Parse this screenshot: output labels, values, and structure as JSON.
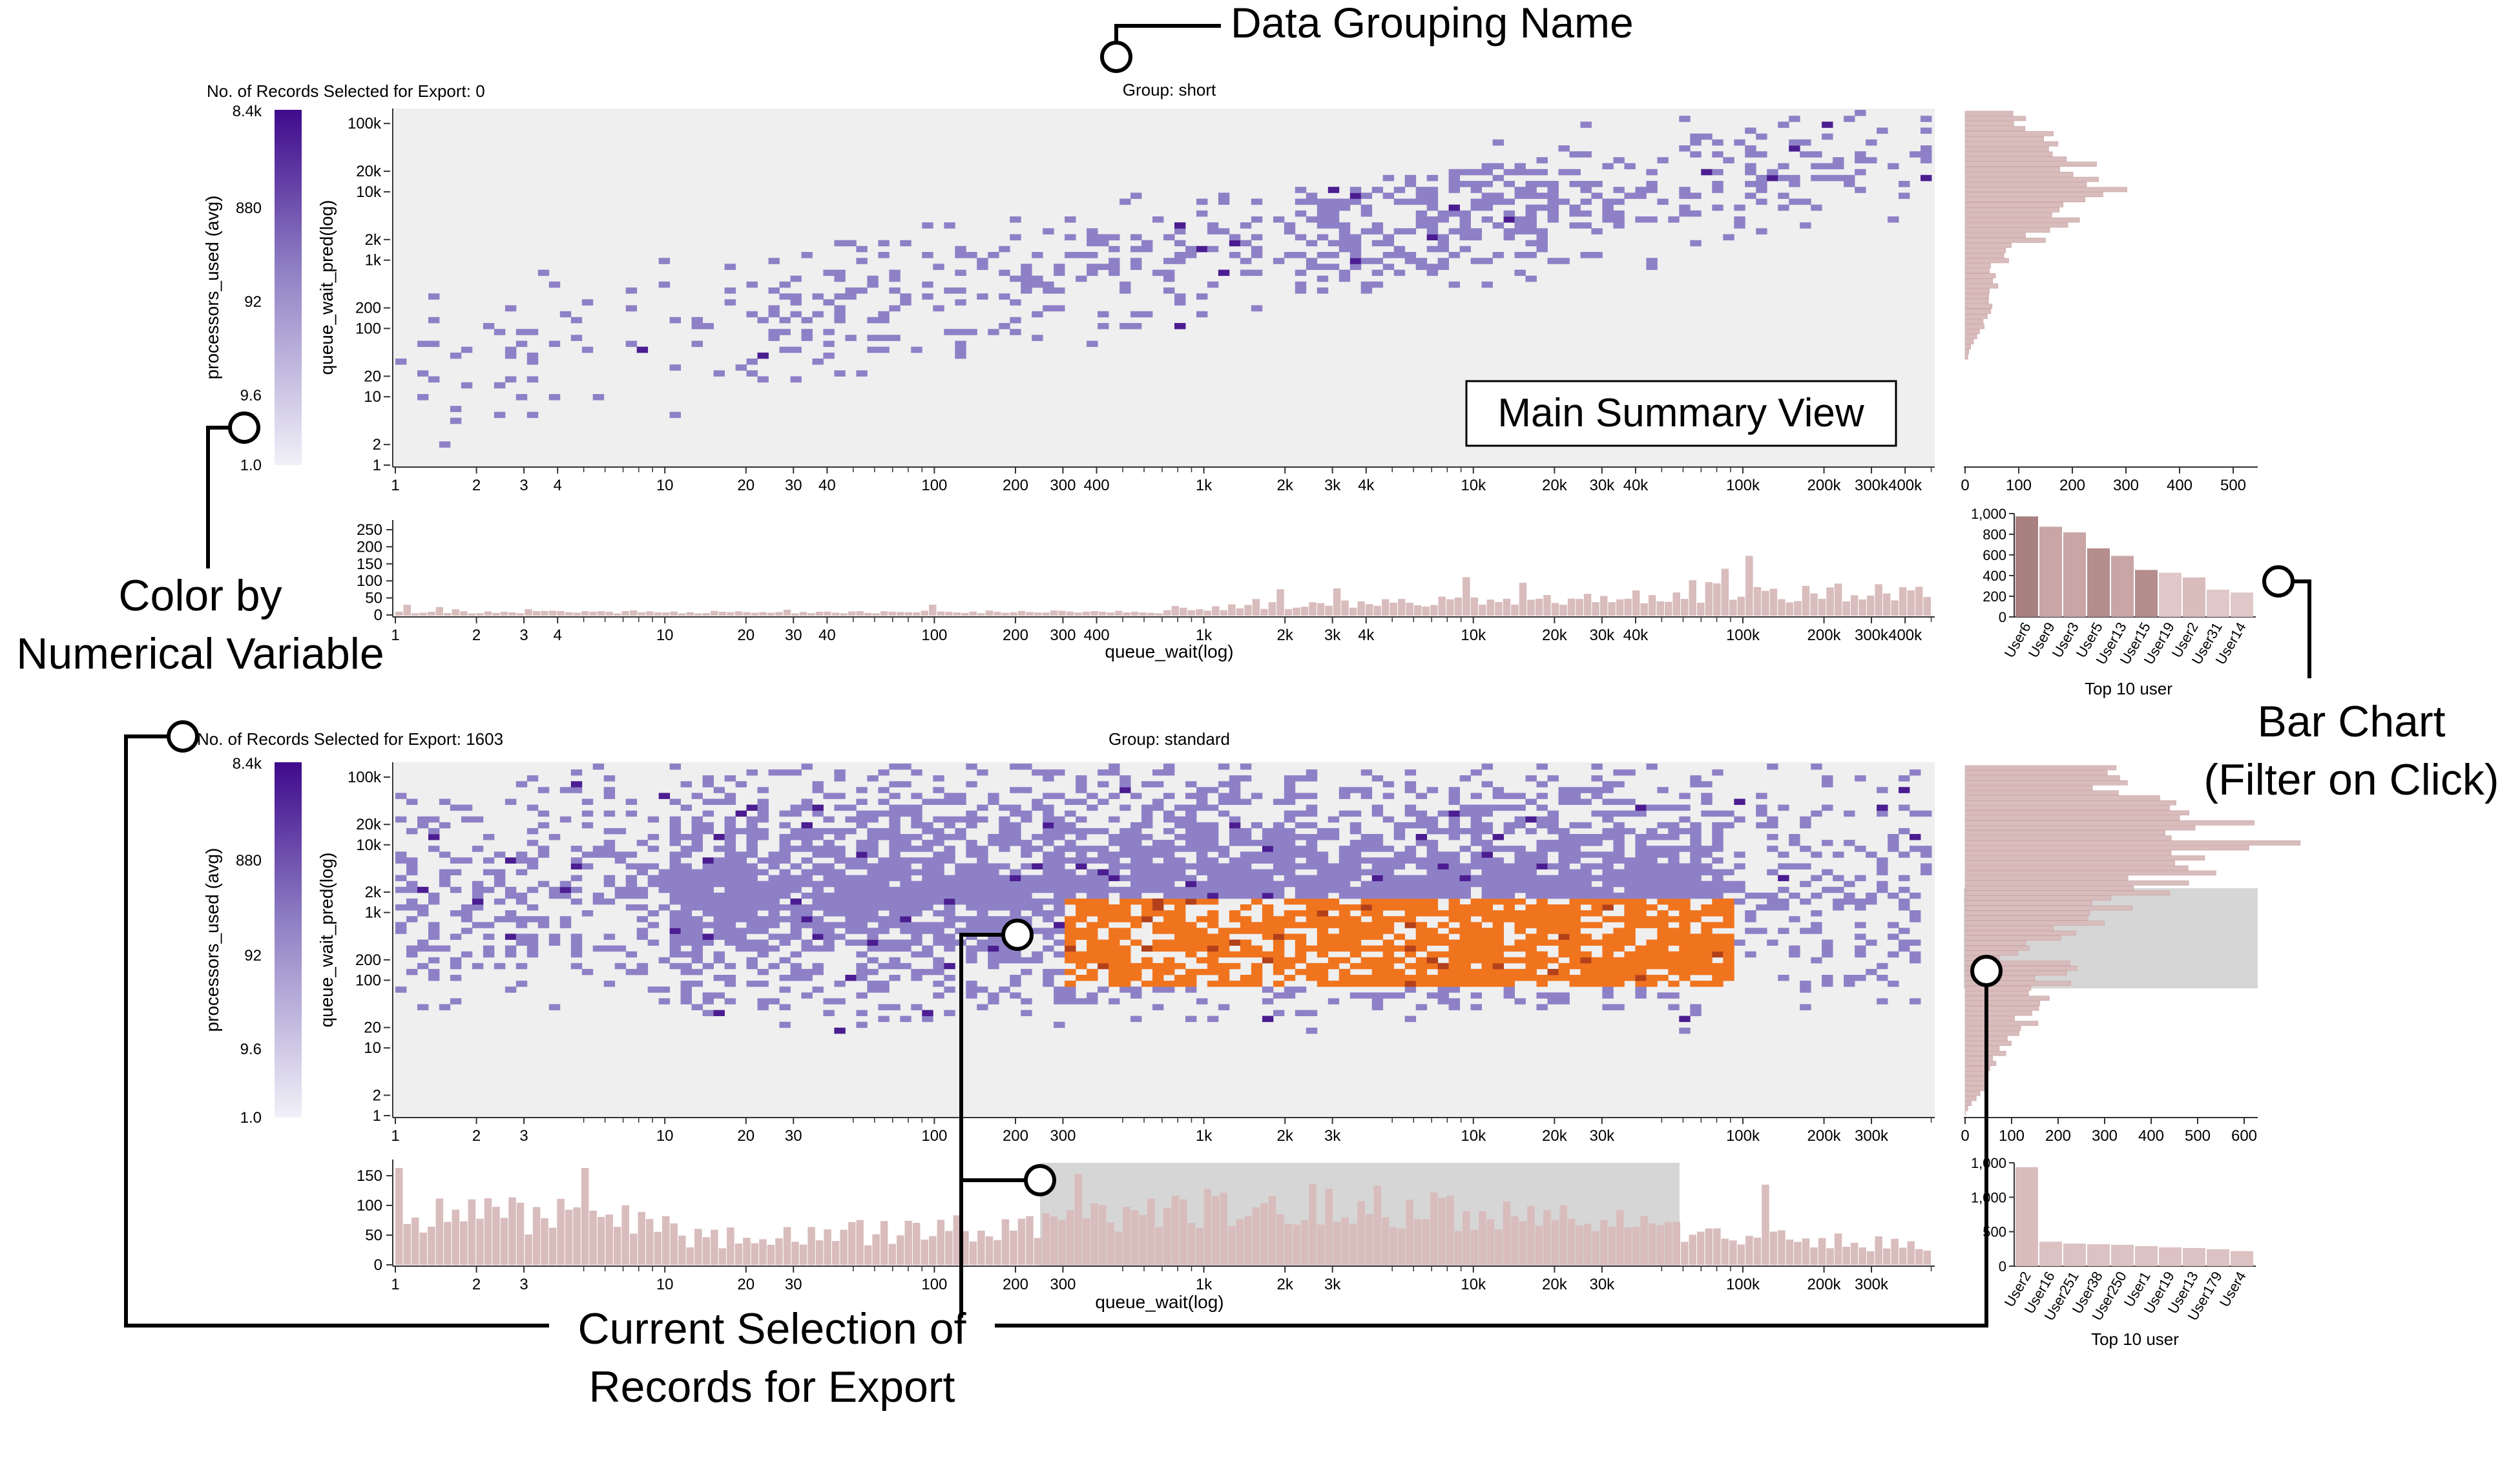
{
  "callouts": {
    "data_grouping_name": "Data Grouping Name",
    "main_summary_view": "Main Summary View",
    "color_by_line1": "Color by",
    "color_by_line2": "Numerical Variable",
    "bar_chart_line1": "Bar Chart",
    "bar_chart_line2": "(Filter on Click)",
    "current_selection_line1": "Current Selection of",
    "current_selection_line2": "Records for Export"
  },
  "panels": [
    {
      "records_label": "No. of Records Selected for Export: 0",
      "group_label": "Group: short",
      "colorbar_ticks": [
        "8.4k",
        "880",
        "92",
        "9.6",
        "1.0"
      ],
      "colorbar_title": "processors_used (avg)",
      "y_title": "queue_wait_pred(log)",
      "y_ticks": [
        "100k",
        "20k",
        "10k",
        "2k",
        "1k",
        "200",
        "100",
        "20",
        "10",
        "2",
        "1"
      ],
      "x_ticks": [
        "1",
        "2",
        "3",
        "4",
        "10",
        "20",
        "30",
        "40",
        "100",
        "200",
        "300",
        "400",
        "1k",
        "2k",
        "3k",
        "4k",
        "10k",
        "20k",
        "30k",
        "40k",
        "100k",
        "200k",
        "300k",
        "400k"
      ],
      "x_title": "queue_wait(log)",
      "side_hist_ticks": [
        "0",
        "100",
        "200",
        "300",
        "400",
        "500"
      ],
      "bottom_hist_ticks": [
        "250",
        "200",
        "150",
        "100",
        "50",
        "0"
      ],
      "users_ticks": [
        "1,000",
        "800",
        "600",
        "400",
        "200",
        "0"
      ],
      "users": [
        "User6",
        "User9",
        "User3",
        "User5",
        "User13",
        "User15",
        "User19",
        "User2",
        "User31",
        "User14"
      ],
      "users_values": [
        1070,
        960,
        900,
        730,
        650,
        500,
        470,
        420,
        290,
        260
      ],
      "users_title": "Top 10 user"
    },
    {
      "records_label": "No. of Records Selected for Export: 1603",
      "group_label": "Group: standard",
      "colorbar_ticks": [
        "8.4k",
        "880",
        "92",
        "9.6",
        "1.0"
      ],
      "colorbar_title": "processors_used (avg)",
      "y_title": "queue_wait_pred(log)",
      "y_ticks": [
        "100k",
        "20k",
        "10k",
        "2k",
        "1k",
        "200",
        "100",
        "20",
        "10",
        "2",
        "1"
      ],
      "x_ticks": [
        "1",
        "2",
        "3",
        "10",
        "20",
        "30",
        "100",
        "200",
        "300",
        "1k",
        "2k",
        "3k",
        "10k",
        "20k",
        "30k",
        "100k",
        "200k",
        "300k"
      ],
      "x_title": "queue_wait(log)",
      "side_hist_ticks": [
        "0",
        "100",
        "200",
        "300",
        "400",
        "500",
        "600"
      ],
      "bottom_hist_ticks": [
        "150",
        "100",
        "50",
        "0"
      ],
      "users_ticks": [
        "1,000",
        "1,000",
        "500",
        "0"
      ],
      "users": [
        "User2",
        "User16",
        "User251",
        "User38",
        "User250",
        "User1",
        "User19",
        "User13",
        "User179",
        "User4"
      ],
      "users_values": [
        1580,
        390,
        360,
        350,
        340,
        320,
        300,
        290,
        270,
        240
      ],
      "users_title": "Top 10 user"
    }
  ],
  "colors": {
    "cell_purple": "#8e80c6",
    "cell_dark": "#4b1d91",
    "cell_orange": "#f0741e",
    "plot_bg": "#efefef",
    "hist_pink": "#d9bcbc",
    "selection_grey": "#d6d6d6"
  }
}
